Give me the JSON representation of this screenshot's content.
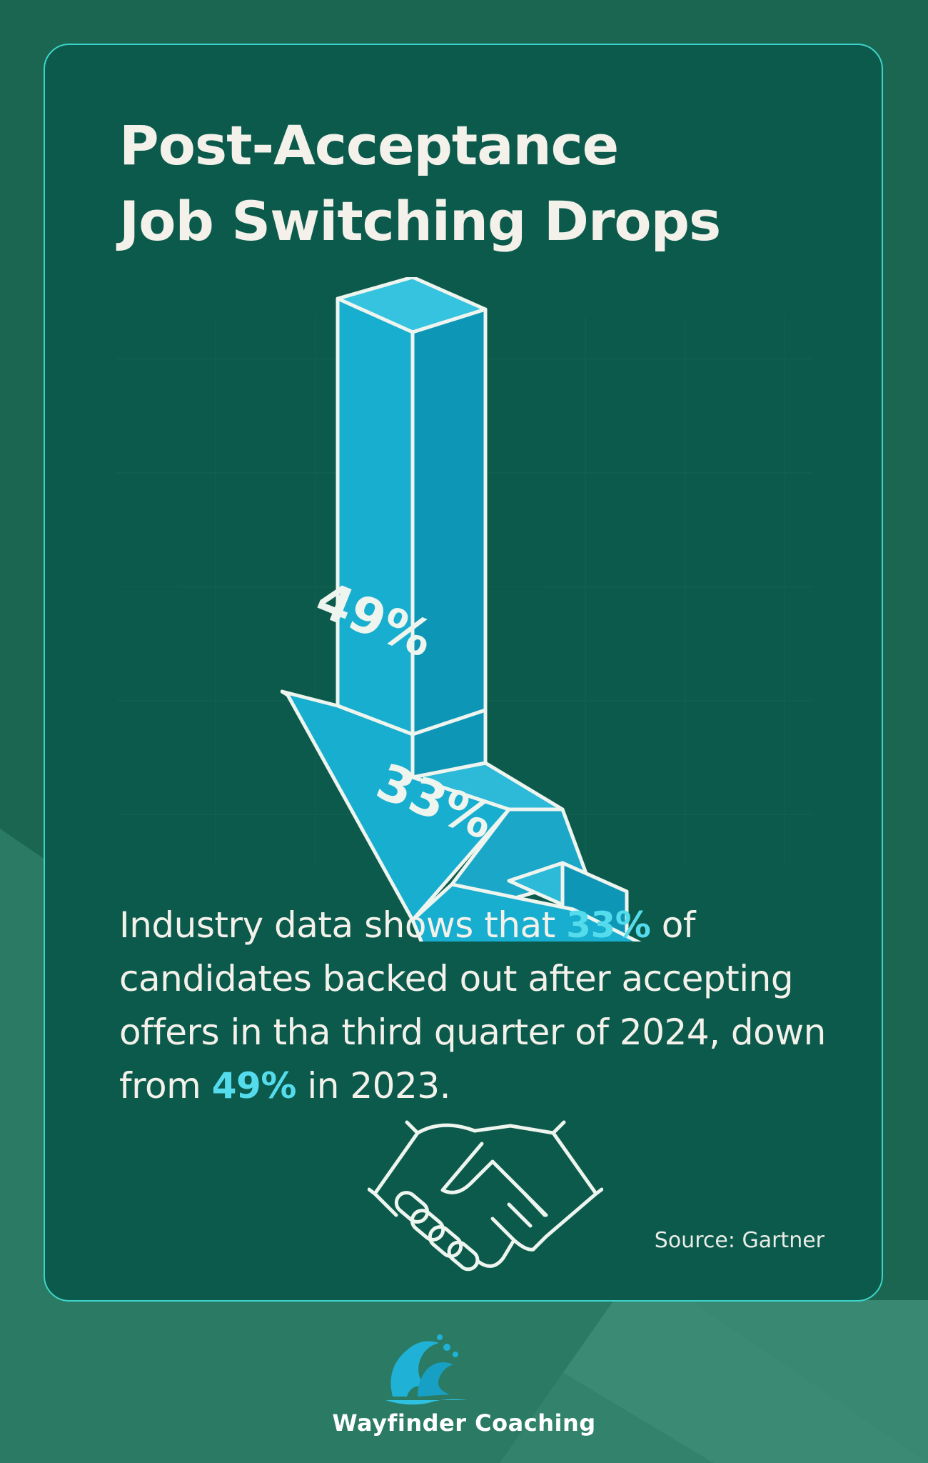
{
  "title": {
    "line1": "Post-Acceptance",
    "line2": "Job Switching Drops"
  },
  "arrow": {
    "upper_label": "49%",
    "lower_label": "33%"
  },
  "body": {
    "part1": "Industry data shows that ",
    "highlight1": "33%",
    "part2": " of candidates backed out after accepting offers in tha third quarter of 2024, down from ",
    "highlight2": "49%",
    "part3": " in 2023."
  },
  "source": "Source: Gartner",
  "brand": {
    "name": "Wayfinder Coaching"
  },
  "colors": {
    "background": "#1a6650",
    "card": "#0b5a4c",
    "card_border": "#3ed3c8",
    "arrow_fill": "#17aecf",
    "highlight": "#55dcec",
    "text": "#f3f1ea"
  },
  "icons": [
    "handshake-icon",
    "wave-logo-icon"
  ]
}
